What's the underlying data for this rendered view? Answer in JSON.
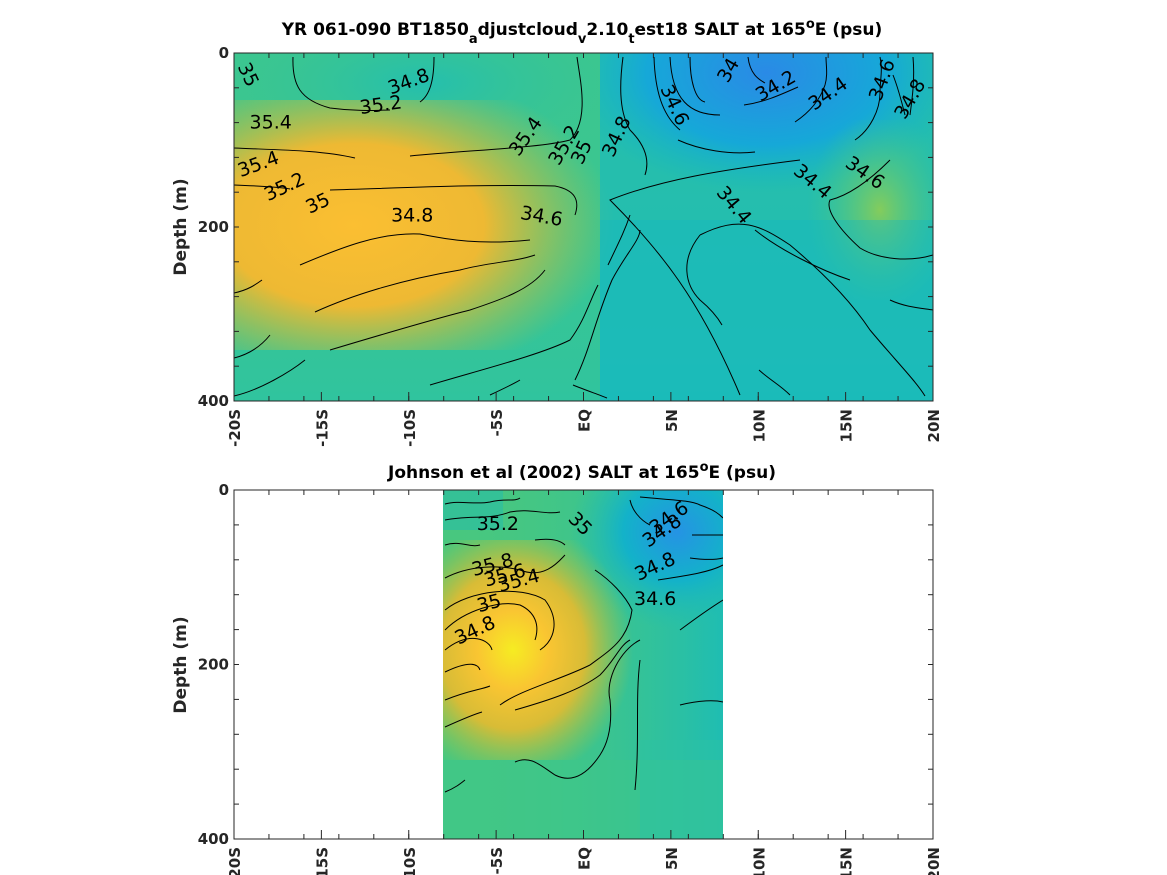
{
  "figure_data": {
    "panel_top": {
      "title_main": "YR 061-090 BT1850",
      "title_sub1": "a",
      "title_mid1": "djustcloud",
      "title_sub2": "v",
      "title_mid2": "2.10",
      "title_sub3": "t",
      "title_mid3": "est18 SALT at 165",
      "title_sup": "o",
      "title_end": "E (psu)",
      "ylabel": "Depth (m)"
    },
    "panel_bottom": {
      "title_main": "Johnson et al (2002) SALT at 165",
      "title_sup": "o",
      "title_end": "E (psu)",
      "ylabel": "Depth (m)"
    }
  },
  "chart_data": [
    {
      "type": "heatmap",
      "subtype": "filled contour section",
      "colormap": "parula",
      "x_ticks": [
        "-20S",
        "-15S",
        "-10S",
        "-5S",
        "EQ",
        "5N",
        "10N",
        "15N",
        "20N"
      ],
      "y_ticks": [
        "0",
        "200",
        "400"
      ],
      "xlim": [
        -20,
        20
      ],
      "ylim": [
        400,
        0
      ],
      "contour_labels": [
        {
          "text": "35",
          "lat": -19.2,
          "depth": 25,
          "angle": 65
        },
        {
          "text": "34.8",
          "lat": -10,
          "depth": 33,
          "angle": -20
        },
        {
          "text": "35.2",
          "lat": -11.6,
          "depth": 60,
          "angle": -8
        },
        {
          "text": "35.4",
          "lat": -17.9,
          "depth": 80,
          "angle": 0
        },
        {
          "text": "35.4",
          "lat": -3.3,
          "depth": 96,
          "angle": -55
        },
        {
          "text": "35.2",
          "lat": -1.1,
          "depth": 106,
          "angle": -60
        },
        {
          "text": "35",
          "lat": -0.1,
          "depth": 114,
          "angle": -65
        },
        {
          "text": "34.8",
          "lat": 1.9,
          "depth": 96,
          "angle": -65
        },
        {
          "text": "34.6",
          "lat": 5.2,
          "depth": 60,
          "angle": 65
        },
        {
          "text": "34",
          "lat": 8.3,
          "depth": 20,
          "angle": -60
        },
        {
          "text": "34.2",
          "lat": 11,
          "depth": 38,
          "angle": -30
        },
        {
          "text": "34.4",
          "lat": 14,
          "depth": 47,
          "angle": -35
        },
        {
          "text": "34.6",
          "lat": 17.1,
          "depth": 31,
          "angle": -70
        },
        {
          "text": "34.8",
          "lat": 18.7,
          "depth": 53,
          "angle": -60
        },
        {
          "text": "35.4",
          "lat": -18.6,
          "depth": 128,
          "angle": -20
        },
        {
          "text": "35.2",
          "lat": -17.1,
          "depth": 154,
          "angle": -25
        },
        {
          "text": "35",
          "lat": -15.2,
          "depth": 173,
          "angle": -25
        },
        {
          "text": "34.8",
          "lat": -9.8,
          "depth": 187,
          "angle": 0
        },
        {
          "text": "34.6",
          "lat": -2.4,
          "depth": 188,
          "angle": 10
        },
        {
          "text": "34.6",
          "lat": 16.1,
          "depth": 138,
          "angle": 35
        },
        {
          "text": "34.4",
          "lat": 13.1,
          "depth": 148,
          "angle": 40
        },
        {
          "text": "34.4",
          "lat": 8.6,
          "depth": 175,
          "angle": 50
        }
      ]
    },
    {
      "type": "heatmap",
      "subtype": "filled contour section",
      "colormap": "parula",
      "x_ticks": [
        "-20S",
        "-15S",
        "-10S",
        "-5S",
        "EQ",
        "5N",
        "10N",
        "15N",
        "20N"
      ],
      "y_ticks": [
        "0",
        "200",
        "400"
      ],
      "xlim": [
        -20,
        20
      ],
      "ylim": [
        400,
        0
      ],
      "data_lat_range": [
        -8,
        8
      ],
      "contour_labels": [
        {
          "text": "35.2",
          "lat": -4.9,
          "depth": 39,
          "angle": 0
        },
        {
          "text": "35",
          "lat": -0.2,
          "depth": 39,
          "angle": 45
        },
        {
          "text": "34.6",
          "lat": 4.9,
          "depth": 32,
          "angle": -35
        },
        {
          "text": "34.8",
          "lat": 4.5,
          "depth": 47,
          "angle": -35
        },
        {
          "text": "35.8",
          "lat": -5.2,
          "depth": 86,
          "angle": -15
        },
        {
          "text": "35.6",
          "lat": -4.5,
          "depth": 98,
          "angle": -15
        },
        {
          "text": "35.4",
          "lat": -3.7,
          "depth": 104,
          "angle": -15
        },
        {
          "text": "34.8",
          "lat": 4.1,
          "depth": 88,
          "angle": -25
        },
        {
          "text": "35",
          "lat": -5.4,
          "depth": 130,
          "angle": -15
        },
        {
          "text": "34.6",
          "lat": 4.1,
          "depth": 125,
          "angle": 0
        },
        {
          "text": "34.8",
          "lat": -6.2,
          "depth": 161,
          "angle": -25
        }
      ]
    }
  ]
}
